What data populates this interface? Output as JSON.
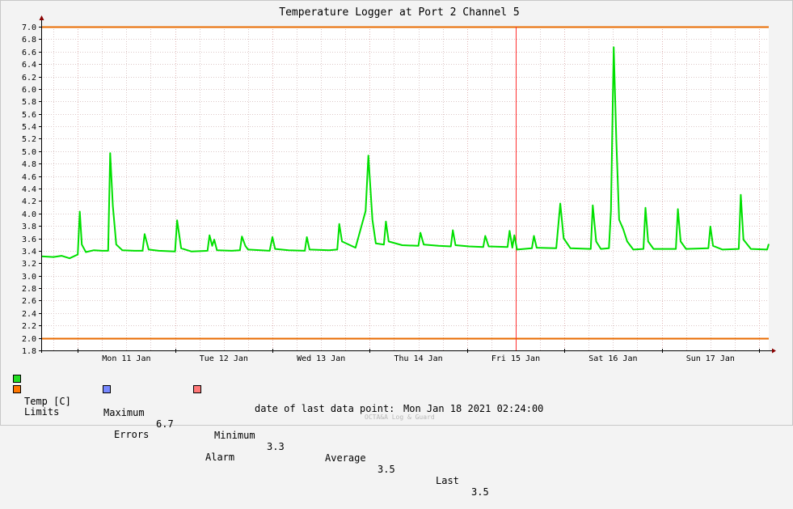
{
  "chart_data": {
    "type": "line",
    "title": "Temperature Logger at Port 2 Channel 5",
    "ylim": [
      1.8,
      7.0
    ],
    "y_ticks": [
      "1.8",
      "2.0",
      "2.2",
      "2.4",
      "2.6",
      "2.8",
      "3.0",
      "3.2",
      "3.4",
      "3.6",
      "3.8",
      "4.0",
      "4.2",
      "4.4",
      "4.6",
      "4.8",
      "5.0",
      "5.2",
      "5.4",
      "5.6",
      "5.8",
      "6.0",
      "6.2",
      "6.4",
      "6.6",
      "6.8",
      "7.0"
    ],
    "x_range": [
      "2021-01-10 15:00",
      "2021-01-18 02:24"
    ],
    "x_tick_labels": [
      {
        "label": "Mon 11 Jan",
        "at": "2021-01-11 12:00"
      },
      {
        "label": "Tue 12 Jan",
        "at": "2021-01-12 12:00"
      },
      {
        "label": "Wed 13 Jan",
        "at": "2021-01-13 12:00"
      },
      {
        "label": "Thu 14 Jan",
        "at": "2021-01-14 12:00"
      },
      {
        "label": "Fri 15 Jan",
        "at": "2021-01-15 12:00"
      },
      {
        "label": "Sat 16 Jan",
        "at": "2021-01-16 12:00"
      },
      {
        "label": "Sun 17 Jan",
        "at": "2021-01-17 12:00"
      }
    ],
    "major_grid_at": [
      "2021-01-11 00:00",
      "2021-01-12 00:00",
      "2021-01-13 00:00",
      "2021-01-14 00:00",
      "2021-01-15 00:00",
      "2021-01-16 00:00",
      "2021-01-17 00:00",
      "2021-01-18 00:00"
    ],
    "limits": {
      "upper": 7.0,
      "lower": 2.0,
      "color": "#e86b00"
    },
    "marker": {
      "at": "2021-01-15 12:00",
      "color": "#ff3030"
    },
    "grid": true,
    "series": [
      {
        "name": "Temp [C]",
        "color": "#00e000",
        "points": [
          [
            "2021-01-10 15:00",
            3.31
          ],
          [
            "2021-01-10 18:00",
            3.3
          ],
          [
            "2021-01-10 20:00",
            3.32
          ],
          [
            "2021-01-10 22:00",
            3.28
          ],
          [
            "2021-01-11 00:00",
            3.34
          ],
          [
            "2021-01-11 00:30",
            4.03
          ],
          [
            "2021-01-11 01:00",
            3.5
          ],
          [
            "2021-01-11 02:00",
            3.38
          ],
          [
            "2021-01-11 04:00",
            3.41
          ],
          [
            "2021-01-11 06:00",
            3.4
          ],
          [
            "2021-01-11 07:30",
            3.4
          ],
          [
            "2021-01-11 08:00",
            4.97
          ],
          [
            "2021-01-11 08:40",
            4.12
          ],
          [
            "2021-01-11 09:30",
            3.5
          ],
          [
            "2021-01-11 11:00",
            3.41
          ],
          [
            "2021-01-11 14:00",
            3.4
          ],
          [
            "2021-01-11 16:00",
            3.4
          ],
          [
            "2021-01-11 16:30",
            3.67
          ],
          [
            "2021-01-11 17:30",
            3.42
          ],
          [
            "2021-01-11 20:00",
            3.4
          ],
          [
            "2021-01-12 00:00",
            3.39
          ],
          [
            "2021-01-12 00:30",
            3.89
          ],
          [
            "2021-01-12 01:30",
            3.44
          ],
          [
            "2021-01-12 04:00",
            3.39
          ],
          [
            "2021-01-12 08:00",
            3.4
          ],
          [
            "2021-01-12 08:30",
            3.65
          ],
          [
            "2021-01-12 09:10",
            3.48
          ],
          [
            "2021-01-12 09:40",
            3.58
          ],
          [
            "2021-01-12 10:20",
            3.41
          ],
          [
            "2021-01-12 14:00",
            3.4
          ],
          [
            "2021-01-12 16:00",
            3.41
          ],
          [
            "2021-01-12 16:30",
            3.63
          ],
          [
            "2021-01-12 17:20",
            3.48
          ],
          [
            "2021-01-12 18:00",
            3.42
          ],
          [
            "2021-01-12 23:20",
            3.4
          ],
          [
            "2021-01-13 00:00",
            3.62
          ],
          [
            "2021-01-13 00:40",
            3.43
          ],
          [
            "2021-01-13 04:00",
            3.41
          ],
          [
            "2021-01-13 08:00",
            3.4
          ],
          [
            "2021-01-13 08:30",
            3.62
          ],
          [
            "2021-01-13 09:10",
            3.42
          ],
          [
            "2021-01-13 14:00",
            3.41
          ],
          [
            "2021-01-13 16:00",
            3.42
          ],
          [
            "2021-01-13 16:30",
            3.83
          ],
          [
            "2021-01-13 17:10",
            3.55
          ],
          [
            "2021-01-13 20:30",
            3.45
          ],
          [
            "2021-01-13 23:00",
            4.04
          ],
          [
            "2021-01-13 23:40",
            4.93
          ],
          [
            "2021-01-14 00:40",
            3.9
          ],
          [
            "2021-01-14 01:30",
            3.52
          ],
          [
            "2021-01-14 03:30",
            3.5
          ],
          [
            "2021-01-14 04:00",
            3.87
          ],
          [
            "2021-01-14 04:40",
            3.55
          ],
          [
            "2021-01-14 08:00",
            3.49
          ],
          [
            "2021-01-14 12:00",
            3.48
          ],
          [
            "2021-01-14 12:30",
            3.69
          ],
          [
            "2021-01-14 13:20",
            3.5
          ],
          [
            "2021-01-14 17:00",
            3.48
          ],
          [
            "2021-01-14 20:00",
            3.47
          ],
          [
            "2021-01-14 20:30",
            3.73
          ],
          [
            "2021-01-14 21:10",
            3.49
          ],
          [
            "2021-01-15 00:30",
            3.47
          ],
          [
            "2021-01-15 04:00",
            3.46
          ],
          [
            "2021-01-15 04:30",
            3.64
          ],
          [
            "2021-01-15 05:20",
            3.47
          ],
          [
            "2021-01-15 10:00",
            3.46
          ],
          [
            "2021-01-15 10:30",
            3.72
          ],
          [
            "2021-01-15 11:10",
            3.45
          ],
          [
            "2021-01-15 11:40",
            3.65
          ],
          [
            "2021-01-15 12:20",
            3.42
          ],
          [
            "2021-01-15 16:00",
            3.44
          ],
          [
            "2021-01-15 16:30",
            3.64
          ],
          [
            "2021-01-15 17:10",
            3.45
          ],
          [
            "2021-01-15 22:00",
            3.44
          ],
          [
            "2021-01-15 23:00",
            4.16
          ],
          [
            "2021-01-15 23:50",
            3.6
          ],
          [
            "2021-01-16 01:30",
            3.44
          ],
          [
            "2021-01-16 06:30",
            3.43
          ],
          [
            "2021-01-16 07:00",
            4.13
          ],
          [
            "2021-01-16 07:50",
            3.55
          ],
          [
            "2021-01-16 09:00",
            3.43
          ],
          [
            "2021-01-16 11:00",
            3.44
          ],
          [
            "2021-01-16 11:30",
            4.05
          ],
          [
            "2021-01-16 12:10",
            6.67
          ],
          [
            "2021-01-16 12:50",
            5.15
          ],
          [
            "2021-01-16 13:30",
            3.9
          ],
          [
            "2021-01-16 14:30",
            3.75
          ],
          [
            "2021-01-16 15:30",
            3.55
          ],
          [
            "2021-01-16 17:00",
            3.42
          ],
          [
            "2021-01-16 19:30",
            3.43
          ],
          [
            "2021-01-16 20:00",
            4.09
          ],
          [
            "2021-01-16 20:40",
            3.55
          ],
          [
            "2021-01-16 22:00",
            3.43
          ],
          [
            "2021-01-17 03:30",
            3.43
          ],
          [
            "2021-01-17 04:00",
            4.07
          ],
          [
            "2021-01-17 04:40",
            3.55
          ],
          [
            "2021-01-17 06:00",
            3.43
          ],
          [
            "2021-01-17 11:30",
            3.44
          ],
          [
            "2021-01-17 12:00",
            3.79
          ],
          [
            "2021-01-17 12:40",
            3.48
          ],
          [
            "2021-01-17 15:00",
            3.42
          ],
          [
            "2021-01-17 19:00",
            3.43
          ],
          [
            "2021-01-17 19:30",
            4.3
          ],
          [
            "2021-01-17 20:10",
            3.58
          ],
          [
            "2021-01-17 22:00",
            3.43
          ],
          [
            "2021-01-18 02:00",
            3.42
          ],
          [
            "2021-01-18 02:24",
            3.51
          ]
        ]
      }
    ]
  },
  "legend": {
    "temp": {
      "label": "Temp [C]",
      "color": "#22dd22"
    },
    "limits": {
      "label": "Limits",
      "color": "#ff7700"
    },
    "errors": {
      "label": "Errors",
      "color": "#7788ff"
    },
    "alarm": {
      "label": "Alarm",
      "color": "#ff7777"
    },
    "stats": {
      "maximum_label": "Maximum",
      "maximum_value": "6.7",
      "minimum_label": "Minimum",
      "minimum_value": "3.3",
      "average_label": "Average",
      "average_value": "3.5",
      "last_label": "Last",
      "last_value": "3.5"
    }
  },
  "footer": {
    "last_point_label": "date of last data point:",
    "last_point_value": "Mon Jan 18 2021 02:24:00",
    "brand": "OCTA&A Log & Guard"
  }
}
